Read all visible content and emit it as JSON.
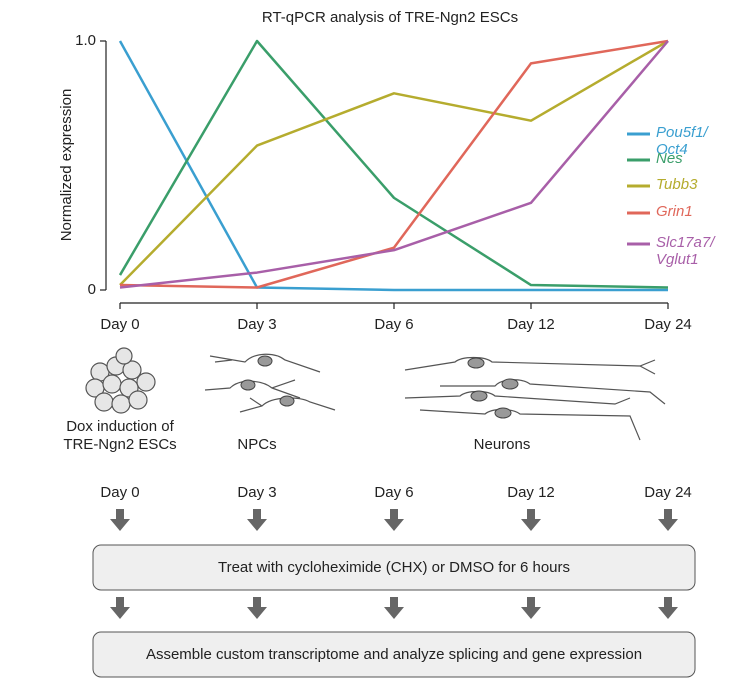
{
  "chart_data": {
    "type": "line",
    "title": "RT-qPCR analysis of TRE-Ngn2 ESCs",
    "y_label": "Normalized expression",
    "categories": [
      "Day 0",
      "Day 3",
      "Day 6",
      "Day 12",
      "Day 24"
    ],
    "ylim": [
      0,
      1
    ],
    "yticks": [
      0,
      {
        "value": 1,
        "label": "1.0"
      }
    ],
    "series": [
      {
        "name": "Pou5f1/\nOct4",
        "color": "#3a9fd0",
        "values": [
          1.0,
          0.01,
          0.0,
          0.0,
          0.0
        ]
      },
      {
        "name": "Nes",
        "color": "#3a9e6a",
        "values": [
          0.06,
          1.0,
          0.37,
          0.02,
          0.01
        ]
      },
      {
        "name": "Tubb3",
        "color": "#b5ac2e",
        "values": [
          0.02,
          0.58,
          0.79,
          0.68,
          1.0
        ]
      },
      {
        "name": "Grin1",
        "color": "#e0675a",
        "values": [
          0.02,
          0.01,
          0.17,
          0.91,
          1.0
        ]
      },
      {
        "name": "Slc17a7/\nVglut1",
        "color": "#a85fa8",
        "values": [
          0.01,
          0.07,
          0.16,
          0.35,
          1.0
        ]
      }
    ]
  },
  "stages": [
    "Dox induction of\nTRE-Ngn2 ESCs",
    "NPCs",
    "Neurons"
  ],
  "timeline": {
    "days": [
      "Day 0",
      "Day 3",
      "Day 6",
      "Day 12",
      "Day 24"
    ],
    "steps": [
      "Treat with cycloheximide (CHX) or DMSO for 6 hours",
      "Assemble custom transcriptome and analyze splicing and gene expression"
    ]
  }
}
